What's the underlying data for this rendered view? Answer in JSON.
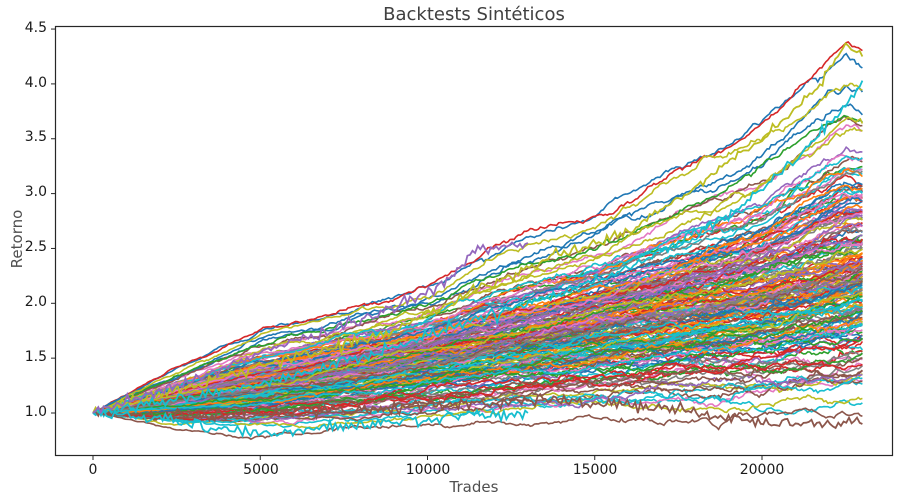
{
  "chart": {
    "title": "Backtests Sintéticos",
    "xlabel": "Trades",
    "ylabel": "Retorno"
  },
  "axes": {
    "x_ticks": [
      "0",
      "5000",
      "10000",
      "15000",
      "20000"
    ],
    "y_ticks": [
      "1.0",
      "1.5",
      "2.0",
      "2.5",
      "3.0",
      "3.5",
      "4.0",
      "4.5"
    ]
  },
  "colors": {
    "palette": [
      "#1f77b4",
      "#ff7f0e",
      "#2ca02c",
      "#d62728",
      "#9467bd",
      "#8c564b",
      "#e377c2",
      "#7f7f7f",
      "#bcbd22",
      "#17becf"
    ],
    "axis": "#262626",
    "text": "#1a1a1a"
  },
  "chart_data": {
    "type": "line",
    "title": "Backtests Sintéticos",
    "xlabel": "Trades",
    "ylabel": "Retorno",
    "xlim": [
      -1100,
      24000
    ],
    "ylim": [
      0.62,
      4.53
    ],
    "x_ticks": [
      0,
      5000,
      10000,
      15000,
      20000
    ],
    "y_ticks": [
      1.0,
      1.5,
      2.0,
      2.5,
      3.0,
      3.5,
      4.0,
      4.5
    ],
    "grid": false,
    "legend": "none",
    "n_series_approx": 200,
    "series_length_trades": 23000,
    "start_value": 1.0,
    "description": "Many synthetic equity-curve random walks (Monte Carlo backtests) starting at 1.0 with positive drift, colored with the matplotlib tab10 cycle.",
    "envelope": {
      "x": [
        0,
        2500,
        5000,
        7500,
        10000,
        12500,
        15000,
        17500,
        20000,
        22500,
        23000
      ],
      "upper": [
        1.0,
        1.4,
        1.75,
        1.95,
        2.15,
        2.55,
        2.8,
        3.25,
        3.65,
        4.35,
        4.25
      ],
      "median": [
        1.0,
        1.12,
        1.25,
        1.38,
        1.52,
        1.65,
        1.8,
        1.95,
        2.1,
        2.3,
        2.35
      ],
      "lower": [
        1.0,
        0.88,
        0.83,
        0.84,
        0.88,
        0.93,
        0.95,
        0.95,
        0.9,
        0.9,
        0.9
      ]
    },
    "notable_series": [
      {
        "color": "#bcbd22",
        "end_value": 4.25,
        "max_value": 4.35,
        "note": "highest path"
      },
      {
        "color": "#17becf",
        "end_value": 4.03,
        "note": "second highest"
      },
      {
        "color": "#8c564b",
        "end_value": 0.9,
        "note": "lowest final value"
      },
      {
        "color": "#17becf",
        "min_value": 0.82,
        "note": "lowest early trough near 5000 trades"
      }
    ]
  }
}
